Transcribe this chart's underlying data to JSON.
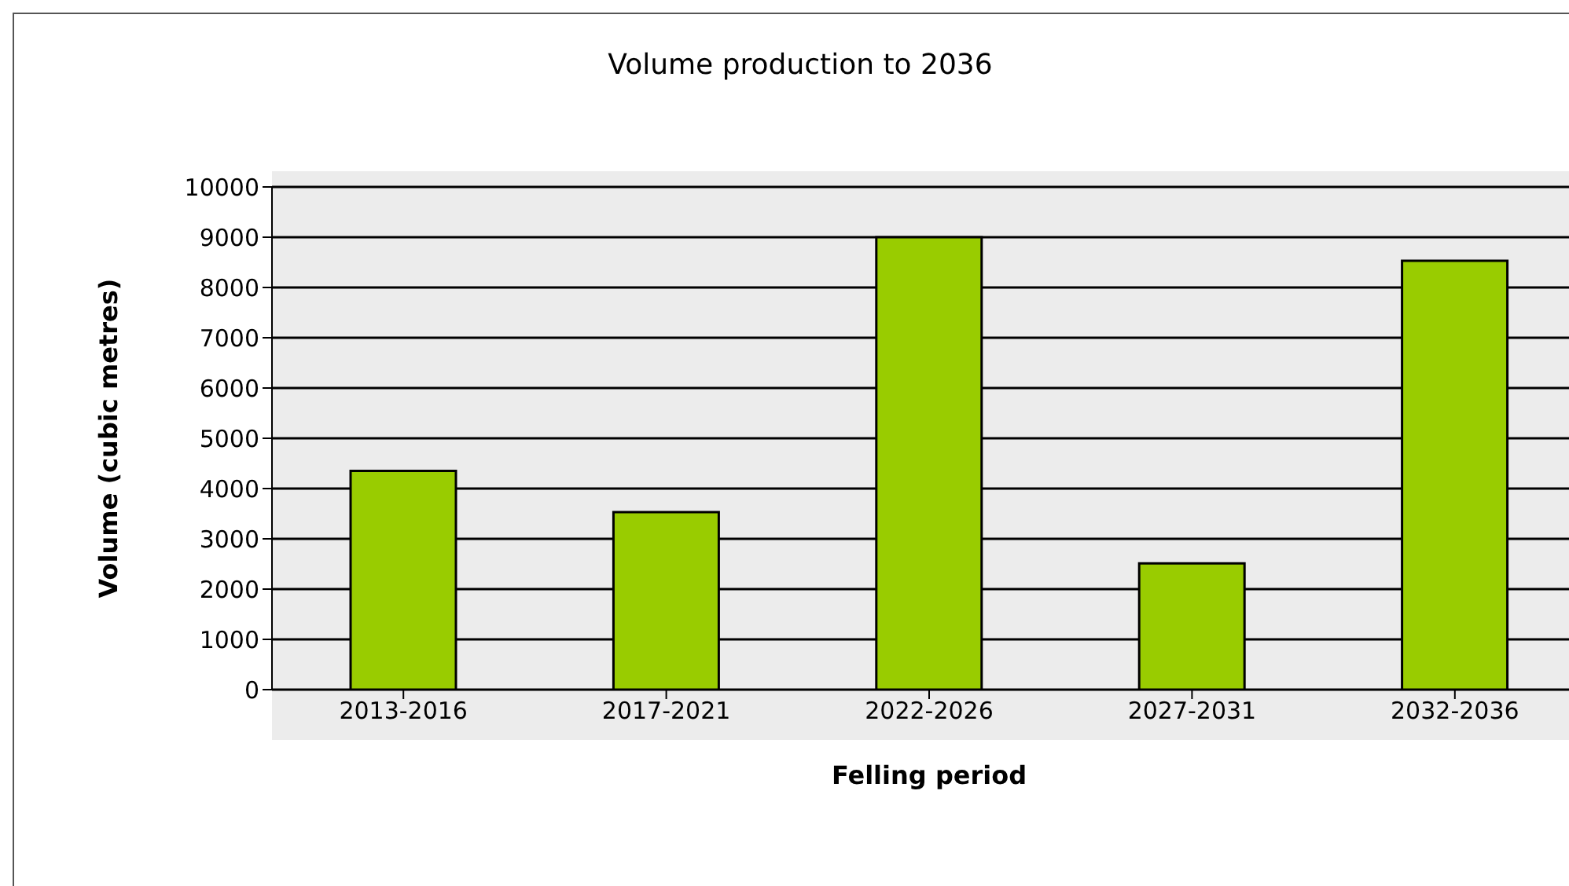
{
  "chart_data": {
    "type": "bar",
    "title": "Volume production to 2036",
    "xlabel": "Felling period",
    "ylabel": "Volume (cubic metres)",
    "categories": [
      "2013-2016",
      "2017-2021",
      "2022-2026",
      "2027-2031",
      "2032-2036"
    ],
    "values": [
      4350,
      3530,
      9000,
      2510,
      8530
    ],
    "color": "#99cc00",
    "ylim": [
      0,
      10000
    ],
    "yticks": [
      0,
      1000,
      2000,
      3000,
      4000,
      5000,
      6000,
      7000,
      8000,
      9000,
      10000
    ],
    "grid": "y"
  }
}
